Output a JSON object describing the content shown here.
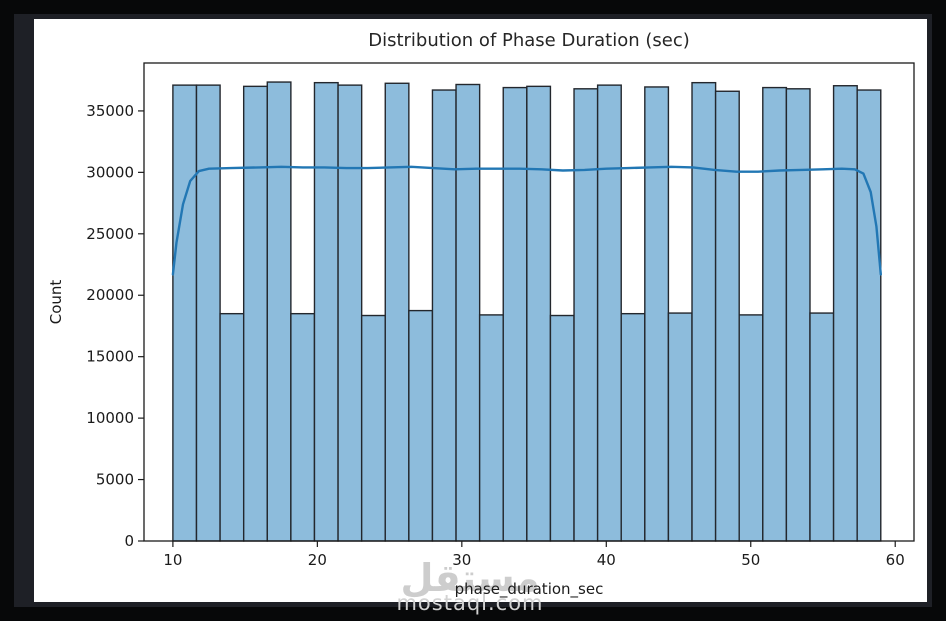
{
  "page": {
    "outer_border_color": "#070809",
    "panel_background": "#1e2026",
    "figure_background": "#ffffff"
  },
  "chart_data": {
    "type": "bar",
    "subtype": "histogram-with-kde",
    "title": "Distribution of Phase Duration (sec)",
    "xlabel": "phase_duration_sec",
    "ylabel": "Count",
    "xlim": [
      8.0,
      61.3
    ],
    "ylim": [
      0,
      38900
    ],
    "x_ticks": [
      10,
      20,
      30,
      40,
      50,
      60
    ],
    "y_ticks": [
      0,
      5000,
      10000,
      15000,
      20000,
      25000,
      30000,
      35000
    ],
    "grid": false,
    "legend_position": "none",
    "bins": {
      "start": 10,
      "end": 59,
      "count": 30,
      "bin_width": 1.6333
    },
    "bar_values": [
      37100,
      37100,
      18500,
      37000,
      37350,
      18500,
      37300,
      37100,
      18350,
      37250,
      18750,
      36700,
      37150,
      18400,
      36900,
      37000,
      18350,
      36800,
      37100,
      18500,
      36950,
      18550,
      37300,
      36600,
      18400,
      36900,
      36800,
      18550,
      37050,
      36700
    ],
    "kde_points": [
      [
        10.0,
        21700
      ],
      [
        10.25,
        24300
      ],
      [
        10.7,
        27400
      ],
      [
        11.2,
        29300
      ],
      [
        11.8,
        30100
      ],
      [
        12.5,
        30300
      ],
      [
        14.0,
        30350
      ],
      [
        16.0,
        30400
      ],
      [
        17.5,
        30450
      ],
      [
        19.0,
        30400
      ],
      [
        20.5,
        30400
      ],
      [
        22.0,
        30350
      ],
      [
        23.5,
        30350
      ],
      [
        25.0,
        30400
      ],
      [
        26.5,
        30450
      ],
      [
        28.0,
        30350
      ],
      [
        29.5,
        30250
      ],
      [
        31.0,
        30300
      ],
      [
        32.5,
        30300
      ],
      [
        34.0,
        30300
      ],
      [
        35.5,
        30250
      ],
      [
        37.0,
        30150
      ],
      [
        38.5,
        30200
      ],
      [
        40.0,
        30300
      ],
      [
        41.5,
        30350
      ],
      [
        43.0,
        30400
      ],
      [
        44.5,
        30450
      ],
      [
        46.0,
        30400
      ],
      [
        47.5,
        30200
      ],
      [
        49.0,
        30050
      ],
      [
        50.5,
        30050
      ],
      [
        52.0,
        30150
      ],
      [
        53.5,
        30200
      ],
      [
        55.0,
        30250
      ],
      [
        56.3,
        30300
      ],
      [
        57.2,
        30250
      ],
      [
        57.8,
        29900
      ],
      [
        58.3,
        28400
      ],
      [
        58.7,
        25600
      ],
      [
        59.0,
        21700
      ]
    ],
    "colors": {
      "bar_fill": "#8dbcdc",
      "bar_edge": "#23272d",
      "kde_line": "#2277b4",
      "axis_text": "#1b1b1b",
      "spine": "#1b1b1b"
    }
  },
  "watermark": {
    "logo_text": "مستقل",
    "domain": "mostaql.com",
    "color": "#cdcdcd"
  }
}
